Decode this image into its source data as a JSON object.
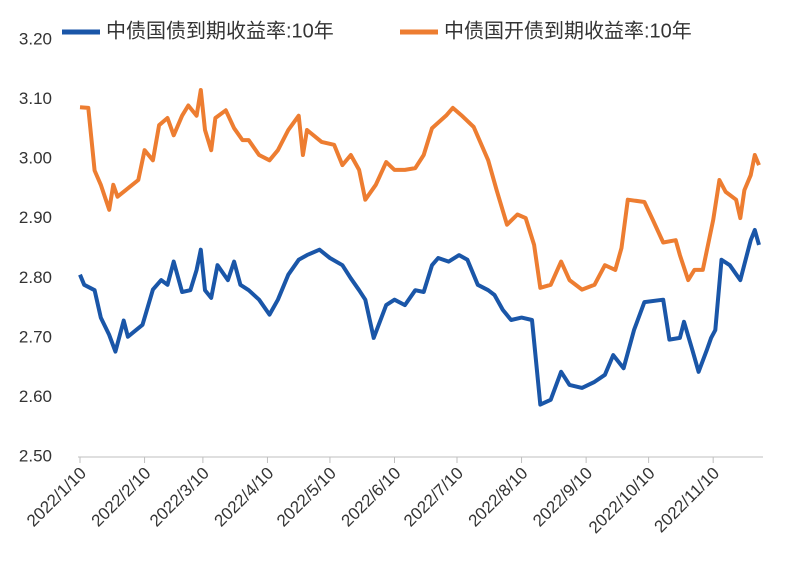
{
  "chart_data": {
    "type": "line",
    "xlim": [
      "2022/1/10",
      "2022/12/2"
    ],
    "xticks": [
      "2022/1/10",
      "2022/2/10",
      "2022/3/10",
      "2022/4/10",
      "2022/5/10",
      "2022/6/10",
      "2022/7/10",
      "2022/8/10",
      "2022/9/10",
      "2022/10/10",
      "2022/11/10"
    ],
    "ylim": [
      2.5,
      3.2
    ],
    "yticks": [
      {
        "value": 2.5,
        "label": "2.50"
      },
      {
        "value": 2.6,
        "label": "2.60"
      },
      {
        "value": 2.7,
        "label": "2.70"
      },
      {
        "value": 2.8,
        "label": "2.80"
      },
      {
        "value": 2.9,
        "label": "2.90"
      },
      {
        "value": 3.0,
        "label": "3.00"
      },
      {
        "value": 3.1,
        "label": "3.10"
      },
      {
        "value": 3.2,
        "label": "3.20"
      }
    ],
    "grid": false,
    "legend": "top",
    "series": [
      {
        "name": "中债国债到期收益率:10年",
        "color": "#1a56a8",
        "x": [
          "2022/1/10",
          "2022/1/12",
          "2022/1/17",
          "2022/1/20",
          "2022/1/24",
          "2022/1/27",
          "2022/1/31",
          "2022/2/2",
          "2022/2/9",
          "2022/2/14",
          "2022/2/18",
          "2022/2/21",
          "2022/2/24",
          "2022/2/28",
          "2022/3/4",
          "2022/3/7",
          "2022/3/9",
          "2022/3/11",
          "2022/3/14",
          "2022/3/17",
          "2022/3/22",
          "2022/3/25",
          "2022/3/28",
          "2022/4/1",
          "2022/4/6",
          "2022/4/11",
          "2022/4/15",
          "2022/4/20",
          "2022/4/25",
          "2022/4/29",
          "2022/5/5",
          "2022/5/10",
          "2022/5/16",
          "2022/5/20",
          "2022/5/24",
          "2022/5/27",
          "2022/5/31",
          "2022/6/6",
          "2022/6/10",
          "2022/6/15",
          "2022/6/20",
          "2022/6/24",
          "2022/6/28",
          "2022/7/1",
          "2022/7/6",
          "2022/7/11",
          "2022/7/15",
          "2022/7/20",
          "2022/7/25",
          "2022/7/28",
          "2022/8/1",
          "2022/8/5",
          "2022/8/10",
          "2022/8/15",
          "2022/8/19",
          "2022/8/24",
          "2022/8/29",
          "2022/9/2",
          "2022/9/8",
          "2022/9/14",
          "2022/9/19",
          "2022/9/23",
          "2022/9/28",
          "2022/10/3",
          "2022/10/8",
          "2022/10/17",
          "2022/10/20",
          "2022/10/25",
          "2022/10/27",
          "2022/10/31",
          "2022/11/3",
          "2022/11/7",
          "2022/11/9",
          "2022/11/11",
          "2022/11/14",
          "2022/11/18",
          "2022/11/23",
          "2022/11/28",
          "2022/11/30",
          "2022/12/2"
        ],
        "values": [
          2.806,
          2.789,
          2.78,
          2.734,
          2.705,
          2.677,
          2.729,
          2.702,
          2.722,
          2.781,
          2.797,
          2.789,
          2.828,
          2.777,
          2.78,
          2.814,
          2.848,
          2.78,
          2.767,
          2.822,
          2.797,
          2.828,
          2.789,
          2.78,
          2.764,
          2.739,
          2.764,
          2.806,
          2.831,
          2.839,
          2.848,
          2.834,
          2.822,
          2.8,
          2.78,
          2.764,
          2.7,
          2.755,
          2.764,
          2.755,
          2.78,
          2.777,
          2.822,
          2.834,
          2.828,
          2.839,
          2.831,
          2.789,
          2.78,
          2.772,
          2.747,
          2.73,
          2.734,
          2.73,
          2.588,
          2.596,
          2.643,
          2.621,
          2.616,
          2.626,
          2.638,
          2.671,
          2.649,
          2.713,
          2.76,
          2.764,
          2.697,
          2.7,
          2.727,
          2.68,
          2.643,
          2.68,
          2.7,
          2.713,
          2.831,
          2.822,
          2.797,
          2.864,
          2.881,
          2.856
        ]
      },
      {
        "name": "中债国开债到期收益率:10年",
        "color": "#ed7d31",
        "x": [
          "2022/1/10",
          "2022/1/14",
          "2022/1/17",
          "2022/1/20",
          "2022/1/24",
          "2022/1/26",
          "2022/1/28",
          "2022/2/7",
          "2022/2/10",
          "2022/2/14",
          "2022/2/17",
          "2022/2/21",
          "2022/2/24",
          "2022/2/28",
          "2022/3/3",
          "2022/3/7",
          "2022/3/9",
          "2022/3/11",
          "2022/3/14",
          "2022/3/16",
          "2022/3/21",
          "2022/3/25",
          "2022/3/29",
          "2022/4/1",
          "2022/4/6",
          "2022/4/11",
          "2022/4/15",
          "2022/4/20",
          "2022/4/25",
          "2022/4/27",
          "2022/4/29",
          "2022/5/6",
          "2022/5/12",
          "2022/5/16",
          "2022/5/20",
          "2022/5/24",
          "2022/5/27",
          "2022/6/1",
          "2022/6/6",
          "2022/6/10",
          "2022/6/15",
          "2022/6/20",
          "2022/6/24",
          "2022/6/28",
          "2022/7/5",
          "2022/7/8",
          "2022/7/12",
          "2022/7/18",
          "2022/7/25",
          "2022/7/29",
          "2022/8/3",
          "2022/8/8",
          "2022/8/12",
          "2022/8/16",
          "2022/8/19",
          "2022/8/24",
          "2022/8/29",
          "2022/9/2",
          "2022/9/8",
          "2022/9/14",
          "2022/9/19",
          "2022/9/24",
          "2022/9/27",
          "2022/9/30",
          "2022/10/8",
          "2022/10/12",
          "2022/10/17",
          "2022/10/23",
          "2022/10/25",
          "2022/10/29",
          "2022/11/1",
          "2022/11/5",
          "2022/11/10",
          "2022/11/13",
          "2022/11/16",
          "2022/11/21",
          "2022/11/23",
          "2022/11/25",
          "2022/11/28",
          "2022/11/30",
          "2022/12/2"
        ],
        "values": [
          3.087,
          3.086,
          2.981,
          2.957,
          2.915,
          2.957,
          2.937,
          2.965,
          3.015,
          2.998,
          3.057,
          3.069,
          3.04,
          3.073,
          3.09,
          3.073,
          3.116,
          3.049,
          3.015,
          3.069,
          3.082,
          3.052,
          3.032,
          3.032,
          3.007,
          2.998,
          3.015,
          3.049,
          3.073,
          3.007,
          3.049,
          3.029,
          3.024,
          2.99,
          3.007,
          2.982,
          2.932,
          2.957,
          2.995,
          2.982,
          2.982,
          2.985,
          3.007,
          3.052,
          3.074,
          3.086,
          3.074,
          3.054,
          2.998,
          2.948,
          2.89,
          2.907,
          2.901,
          2.856,
          2.784,
          2.789,
          2.828,
          2.797,
          2.781,
          2.789,
          2.822,
          2.814,
          2.851,
          2.932,
          2.928,
          2.898,
          2.86,
          2.864,
          2.839,
          2.797,
          2.814,
          2.814,
          2.898,
          2.965,
          2.945,
          2.932,
          2.901,
          2.948,
          2.973,
          3.007,
          2.99
        ]
      }
    ]
  }
}
